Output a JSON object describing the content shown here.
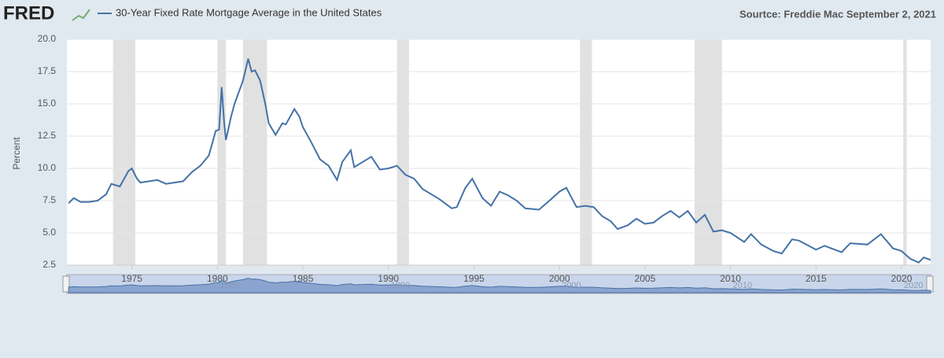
{
  "chart_data": {
    "type": "line",
    "logo": "FRED",
    "source": "Sourtce: Freddie Mac  September 2, 2021",
    "y_label": "Percent",
    "x": [
      1971.3,
      1971.6,
      1972,
      1972.5,
      1973,
      1973.5,
      1973.8,
      1974.3,
      1974.8,
      1975,
      1975.3,
      1975.5,
      1976,
      1976.5,
      1977,
      1977.5,
      1978,
      1978.5,
      1979,
      1979.5,
      1979.9,
      1980.1,
      1980.25,
      1980.4,
      1980.5,
      1980.8,
      1981,
      1981.5,
      1981.8,
      1982,
      1982.2,
      1982.5,
      1982.8,
      1983,
      1983.4,
      1983.8,
      1984,
      1984.5,
      1984.8,
      1985,
      1985.5,
      1986,
      1986.5,
      1987,
      1987.3,
      1987.8,
      1988,
      1988.5,
      1989,
      1989.5,
      1990,
      1990.5,
      1991,
      1991.5,
      1992,
      1992.5,
      1993,
      1993.7,
      1994,
      1994.5,
      1994.9,
      1995.5,
      1996,
      1996.5,
      1997,
      1997.5,
      1998,
      1998.8,
      1999.5,
      2000,
      2000.4,
      2001,
      2001.5,
      2002,
      2002.5,
      2003,
      2003.4,
      2004,
      2004.5,
      2005,
      2005.5,
      2006,
      2006.5,
      2007,
      2007.5,
      2008,
      2008.5,
      2009,
      2009.5,
      2010,
      2010.8,
      2011.2,
      2011.8,
      2012.5,
      2013,
      2013.6,
      2014,
      2015,
      2015.5,
      2016.5,
      2017,
      2018,
      2018.8,
      2019.5,
      2020,
      2020.5,
      2021,
      2021.3,
      2021.7
    ],
    "series": [
      {
        "name": "30-Year Fixed Rate Mortgage Average in the United States",
        "color": "#4572a7",
        "values": [
          7.3,
          7.7,
          7.4,
          7.4,
          7.5,
          8.0,
          8.8,
          8.6,
          9.8,
          10.0,
          9.2,
          8.9,
          9.0,
          9.1,
          8.8,
          8.9,
          9.0,
          9.7,
          10.2,
          11.0,
          12.9,
          13.0,
          16.3,
          13.5,
          12.2,
          14.0,
          15.0,
          16.8,
          18.5,
          17.5,
          17.6,
          16.8,
          15.0,
          13.5,
          12.6,
          13.5,
          13.4,
          14.6,
          14.0,
          13.2,
          12.0,
          10.7,
          10.2,
          9.1,
          10.5,
          11.4,
          10.1,
          10.5,
          10.9,
          9.9,
          10.0,
          10.2,
          9.5,
          9.2,
          8.4,
          8.0,
          7.6,
          6.9,
          7.0,
          8.5,
          9.2,
          7.7,
          7.1,
          8.2,
          7.9,
          7.5,
          6.9,
          6.8,
          7.6,
          8.2,
          8.5,
          7.0,
          7.1,
          7.0,
          6.3,
          5.9,
          5.3,
          5.6,
          6.1,
          5.7,
          5.8,
          6.3,
          6.7,
          6.2,
          6.7,
          5.8,
          6.4,
          5.1,
          5.2,
          5.0,
          4.3,
          4.9,
          4.1,
          3.6,
          3.4,
          4.5,
          4.4,
          3.7,
          4.0,
          3.5,
          4.2,
          4.1,
          4.9,
          3.8,
          3.6,
          3.0,
          2.7,
          3.1,
          2.9
        ]
      }
    ],
    "recessions": [
      [
        1973.9,
        1975.2
      ],
      [
        1980.0,
        1980.5
      ],
      [
        1981.5,
        1982.9
      ],
      [
        1990.5,
        1991.2
      ],
      [
        2001.2,
        2001.9
      ],
      [
        2007.9,
        2009.5
      ],
      [
        2020.1,
        2020.3
      ]
    ],
    "recession_color": "#e1e1e1",
    "xlim": [
      1971.2,
      2021.7
    ],
    "xticks": [
      1975,
      1980,
      1985,
      1990,
      1995,
      2000,
      2005,
      2010,
      2015,
      2020
    ],
    "ylim": [
      2.5,
      20
    ],
    "yticks": [
      2.5,
      {
        "value": 5,
        "label": "5.0"
      },
      7.5,
      {
        "value": 10,
        "label": "10.0"
      },
      12.5,
      {
        "value": 15,
        "label": "15.0"
      },
      17.5,
      {
        "value": 20,
        "label": "20.0"
      }
    ],
    "grid": true,
    "navigator_xticks": [
      1980,
      1990,
      2000,
      2010,
      2020
    ]
  }
}
